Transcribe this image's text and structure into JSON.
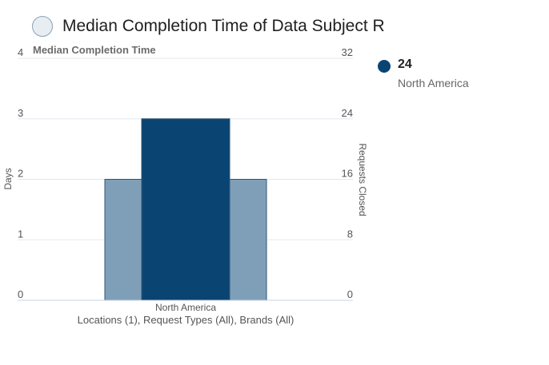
{
  "header": {
    "title": "Median Completion Time of Data Subject Requests",
    "subtitle": "Median Completion Time",
    "icon": "circle-icon"
  },
  "legend": {
    "value": "24",
    "name": "North America",
    "color": "#0a4473"
  },
  "chart_data": {
    "type": "bar",
    "title": "Median Completion Time of Data Subject Requests",
    "subtitle": "Median Completion Time",
    "categories": [
      "North America"
    ],
    "xlabel": "Locations (1), Request Types (All), Brands (All)",
    "ylabel_left": "Days",
    "ylabel_right": "Requests Closed",
    "ylim_left": [
      0,
      4
    ],
    "ylim_right": [
      0,
      32
    ],
    "left_ticks": [
      "0",
      "1",
      "2",
      "3",
      "4"
    ],
    "right_ticks": [
      "0",
      "8",
      "16",
      "24",
      "32"
    ],
    "series": [
      {
        "name": "Days",
        "axis": "left",
        "values": [
          2
        ],
        "color": "#7f9fb8"
      },
      {
        "name": "Requests Closed",
        "axis": "right",
        "values": [
          24
        ],
        "color": "#0a4473"
      }
    ],
    "grid": true
  }
}
